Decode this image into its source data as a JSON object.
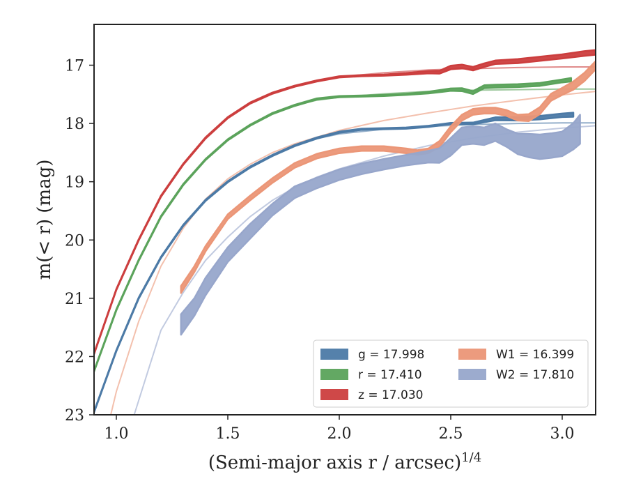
{
  "chart_data": {
    "type": "line",
    "xlabel": "(Semi-major axis r / arcsec)",
    "xlabel_sup": "1/4",
    "ylabel": "m(< r) (mag)",
    "xlim": [
      0.9,
      3.15
    ],
    "ylim": [
      23,
      16.3
    ],
    "y_inverted": true,
    "grid": false,
    "legend_position": "lower-right",
    "x_ticks": [
      1.0,
      1.5,
      2.0,
      2.5,
      3.0
    ],
    "x_tick_labels": [
      "1.0",
      "1.5",
      "2.0",
      "2.5",
      "3.0"
    ],
    "y_ticks": [
      17,
      18,
      19,
      20,
      21,
      22,
      23
    ],
    "y_tick_labels": [
      "17",
      "18",
      "19",
      "20",
      "21",
      "22",
      "23"
    ],
    "series": [
      {
        "name": "g = 17.998",
        "color": "#4c7aa6",
        "band_color": "#4c7aa6",
        "model": {
          "x": [
            0.9,
            1.0,
            1.1,
            1.2,
            1.3,
            1.4,
            1.5,
            1.6,
            1.7,
            1.8,
            1.9,
            2.0,
            2.2,
            2.4,
            2.6,
            2.8,
            3.0,
            3.15
          ],
          "y": [
            22.95,
            21.9,
            21.0,
            20.3,
            19.75,
            19.32,
            19.0,
            18.75,
            18.55,
            18.38,
            18.26,
            18.18,
            18.1,
            18.05,
            18.02,
            18.0,
            17.99,
            17.99
          ]
        },
        "observed": {
          "x": [
            0.9,
            1.0,
            1.1,
            1.2,
            1.3,
            1.4,
            1.5,
            1.6,
            1.7,
            1.8,
            1.9,
            2.0,
            2.1,
            2.2,
            2.3,
            2.4,
            2.5,
            2.6,
            2.7,
            2.8,
            2.9,
            3.0,
            3.05
          ],
          "y": [
            22.95,
            21.9,
            21.0,
            20.3,
            19.75,
            19.32,
            19.0,
            18.75,
            18.55,
            18.38,
            18.25,
            18.15,
            18.1,
            18.09,
            18.08,
            18.05,
            18.0,
            18.0,
            17.92,
            17.92,
            17.9,
            17.86,
            17.85
          ],
          "width": [
            0.02,
            0.02,
            0.02,
            0.02,
            0.02,
            0.02,
            0.02,
            0.02,
            0.02,
            0.02,
            0.02,
            0.02,
            0.02,
            0.02,
            0.02,
            0.02,
            0.02,
            0.03,
            0.05,
            0.06,
            0.06,
            0.06,
            0.07
          ]
        }
      },
      {
        "name": "r = 17.410",
        "color": "#5ba35b",
        "band_color": "#5ba35b",
        "model": {
          "x": [
            0.9,
            1.0,
            1.1,
            1.2,
            1.3,
            1.4,
            1.5,
            1.6,
            1.7,
            1.8,
            1.9,
            2.0,
            2.2,
            2.4,
            2.6,
            2.8,
            3.0,
            3.15
          ],
          "y": [
            22.25,
            21.2,
            20.35,
            19.6,
            19.05,
            18.62,
            18.28,
            18.03,
            17.83,
            17.69,
            17.6,
            17.55,
            17.49,
            17.45,
            17.43,
            17.42,
            17.41,
            17.41
          ]
        },
        "observed": {
          "x": [
            0.9,
            1.0,
            1.1,
            1.2,
            1.3,
            1.4,
            1.5,
            1.6,
            1.7,
            1.8,
            1.9,
            2.0,
            2.1,
            2.2,
            2.3,
            2.4,
            2.5,
            2.55,
            2.6,
            2.65,
            2.7,
            2.8,
            2.9,
            3.0,
            3.04
          ],
          "y": [
            22.25,
            21.2,
            20.35,
            19.6,
            19.05,
            18.62,
            18.28,
            18.03,
            17.83,
            17.69,
            17.58,
            17.54,
            17.53,
            17.52,
            17.5,
            17.47,
            17.42,
            17.42,
            17.47,
            17.37,
            17.36,
            17.35,
            17.33,
            17.27,
            17.25
          ],
          "width": [
            0.02,
            0.02,
            0.02,
            0.02,
            0.02,
            0.02,
            0.02,
            0.02,
            0.02,
            0.02,
            0.02,
            0.02,
            0.02,
            0.02,
            0.02,
            0.03,
            0.04,
            0.05,
            0.05,
            0.05,
            0.05,
            0.05,
            0.05,
            0.05,
            0.06
          ]
        }
      },
      {
        "name": "z = 17.030",
        "color": "#cc3e3e",
        "band_color": "#cc3e3e",
        "model": {
          "x": [
            0.9,
            1.0,
            1.1,
            1.2,
            1.3,
            1.4,
            1.5,
            1.6,
            1.7,
            1.8,
            1.9,
            2.0,
            2.2,
            2.4,
            2.6,
            2.8,
            3.0,
            3.15
          ],
          "y": [
            21.95,
            20.85,
            20.0,
            19.25,
            18.7,
            18.25,
            17.9,
            17.65,
            17.48,
            17.36,
            17.27,
            17.2,
            17.13,
            17.08,
            17.06,
            17.04,
            17.03,
            17.03
          ]
        },
        "observed": {
          "x": [
            0.9,
            1.0,
            1.1,
            1.2,
            1.3,
            1.4,
            1.5,
            1.6,
            1.7,
            1.8,
            1.9,
            2.0,
            2.1,
            2.2,
            2.3,
            2.4,
            2.45,
            2.5,
            2.55,
            2.6,
            2.65,
            2.7,
            2.8,
            2.9,
            3.0,
            3.1,
            3.15
          ],
          "y": [
            21.95,
            20.85,
            20.0,
            19.25,
            18.7,
            18.25,
            17.9,
            17.65,
            17.48,
            17.36,
            17.27,
            17.2,
            17.18,
            17.17,
            17.15,
            17.12,
            17.12,
            17.04,
            17.02,
            17.06,
            17.0,
            16.95,
            16.93,
            16.89,
            16.85,
            16.8,
            16.78
          ],
          "width": [
            0.02,
            0.02,
            0.02,
            0.02,
            0.02,
            0.02,
            0.02,
            0.02,
            0.02,
            0.02,
            0.02,
            0.02,
            0.02,
            0.02,
            0.03,
            0.04,
            0.05,
            0.06,
            0.06,
            0.06,
            0.06,
            0.06,
            0.07,
            0.07,
            0.07,
            0.08,
            0.08
          ]
        }
      },
      {
        "name": "W1 = 16.399",
        "color": "#eb9677",
        "band_color": "#eb9677",
        "model": {
          "x": [
            0.9,
            1.0,
            1.1,
            1.2,
            1.3,
            1.4,
            1.5,
            1.6,
            1.7,
            1.8,
            2.0,
            2.2,
            2.4,
            2.6,
            2.8,
            3.0,
            3.15
          ],
          "y": [
            24.2,
            22.6,
            21.4,
            20.45,
            19.8,
            19.3,
            18.95,
            18.7,
            18.5,
            18.35,
            18.12,
            17.95,
            17.82,
            17.7,
            17.6,
            17.51,
            17.45
          ]
        },
        "observed": {
          "x": [
            1.29,
            1.35,
            1.4,
            1.5,
            1.6,
            1.7,
            1.8,
            1.9,
            2.0,
            2.1,
            2.2,
            2.3,
            2.35,
            2.4,
            2.45,
            2.5,
            2.55,
            2.6,
            2.65,
            2.7,
            2.75,
            2.8,
            2.85,
            2.9,
            2.95,
            3.0,
            3.05,
            3.1,
            3.15
          ],
          "y": [
            20.85,
            20.5,
            20.15,
            19.6,
            19.28,
            18.98,
            18.72,
            18.56,
            18.47,
            18.43,
            18.43,
            18.47,
            18.5,
            18.47,
            18.35,
            18.1,
            17.9,
            17.8,
            17.78,
            17.78,
            17.82,
            17.9,
            17.9,
            17.78,
            17.55,
            17.45,
            17.35,
            17.2,
            17.0
          ],
          "width": [
            0.12,
            0.1,
            0.09,
            0.08,
            0.08,
            0.08,
            0.08,
            0.08,
            0.08,
            0.08,
            0.08,
            0.08,
            0.08,
            0.08,
            0.1,
            0.1,
            0.1,
            0.1,
            0.1,
            0.1,
            0.1,
            0.1,
            0.12,
            0.12,
            0.12,
            0.12,
            0.14,
            0.14,
            0.14
          ]
        }
      },
      {
        "name": "W2 = 17.810",
        "color": "#97a6cb",
        "band_color": "#97a6cb",
        "model": {
          "x": [
            1.08,
            1.15,
            1.2,
            1.3,
            1.4,
            1.5,
            1.6,
            1.7,
            1.8,
            1.9,
            2.0,
            2.2,
            2.4,
            2.6,
            2.8,
            3.0,
            3.15
          ],
          "y": [
            23.0,
            22.15,
            21.55,
            20.9,
            20.35,
            19.95,
            19.6,
            19.32,
            19.1,
            18.92,
            18.78,
            18.56,
            18.38,
            18.25,
            18.15,
            18.08,
            18.04
          ]
        },
        "observed": {
          "x": [
            1.29,
            1.35,
            1.4,
            1.5,
            1.6,
            1.7,
            1.8,
            1.9,
            2.0,
            2.1,
            2.2,
            2.3,
            2.4,
            2.45,
            2.5,
            2.55,
            2.6,
            2.65,
            2.7,
            2.75,
            2.8,
            2.85,
            2.9,
            2.95,
            3.0,
            3.05,
            3.08
          ],
          "y": [
            21.45,
            21.15,
            20.8,
            20.25,
            19.85,
            19.48,
            19.18,
            19.02,
            18.88,
            18.78,
            18.7,
            18.63,
            18.57,
            18.55,
            18.4,
            18.22,
            18.2,
            18.22,
            18.15,
            18.25,
            18.35,
            18.38,
            18.4,
            18.38,
            18.35,
            18.22,
            18.1
          ],
          "width": [
            0.35,
            0.3,
            0.3,
            0.25,
            0.25,
            0.2,
            0.2,
            0.18,
            0.18,
            0.18,
            0.18,
            0.18,
            0.2,
            0.25,
            0.3,
            0.3,
            0.3,
            0.3,
            0.3,
            0.3,
            0.35,
            0.4,
            0.42,
            0.42,
            0.42,
            0.45,
            0.5
          ]
        }
      }
    ]
  }
}
